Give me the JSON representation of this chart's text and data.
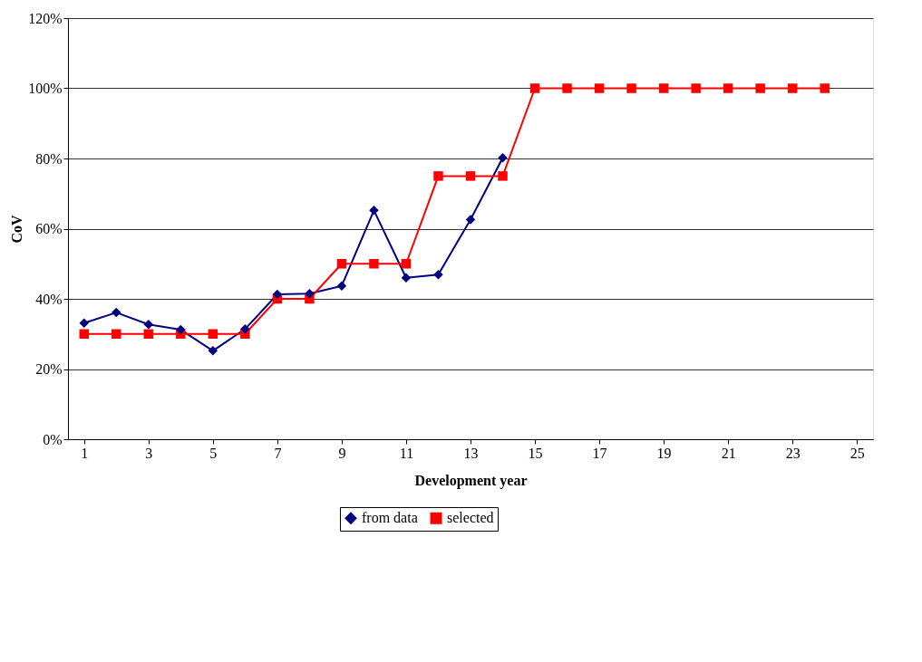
{
  "chart_data": {
    "type": "line",
    "xlabel": "Development year",
    "ylabel": "CoV",
    "xlim": [
      0.5,
      25.5
    ],
    "xticks": [
      1,
      3,
      5,
      7,
      9,
      11,
      13,
      15,
      17,
      19,
      21,
      23,
      25
    ],
    "ylim": [
      0,
      120
    ],
    "yticks": [
      {
        "value": 0,
        "label": "0%"
      },
      {
        "value": 20,
        "label": "20%"
      },
      {
        "value": 40,
        "label": "40%"
      },
      {
        "value": 60,
        "label": "60%"
      },
      {
        "value": 80,
        "label": "80%"
      },
      {
        "value": 100,
        "label": "100%"
      },
      {
        "value": 120,
        "label": "120%"
      }
    ],
    "grid": "y",
    "legend": "bottom",
    "line_style": "solid",
    "series": [
      {
        "name": "from data",
        "color": "#000080",
        "marker": "diamond",
        "x": [
          1,
          2,
          3,
          4,
          5,
          6,
          7,
          8,
          9,
          10,
          11,
          12,
          13,
          14
        ],
        "values": [
          33.1,
          36.1,
          32.7,
          31.2,
          25.2,
          31.4,
          41.3,
          41.5,
          43.7,
          65.2,
          46.0,
          46.9,
          62.6,
          80.2
        ]
      },
      {
        "name": "selected",
        "color": "#ff0000",
        "marker": "square",
        "x": [
          1,
          2,
          3,
          4,
          5,
          6,
          7,
          8,
          9,
          10,
          11,
          12,
          13,
          14,
          15,
          16,
          17,
          18,
          19,
          20,
          21,
          22,
          23,
          24
        ],
        "values": [
          30,
          30,
          30,
          30,
          30,
          30,
          40,
          40,
          50,
          50,
          50,
          75,
          75,
          75,
          100,
          100,
          100,
          100,
          100,
          100,
          100,
          100,
          100,
          100
        ]
      }
    ]
  }
}
